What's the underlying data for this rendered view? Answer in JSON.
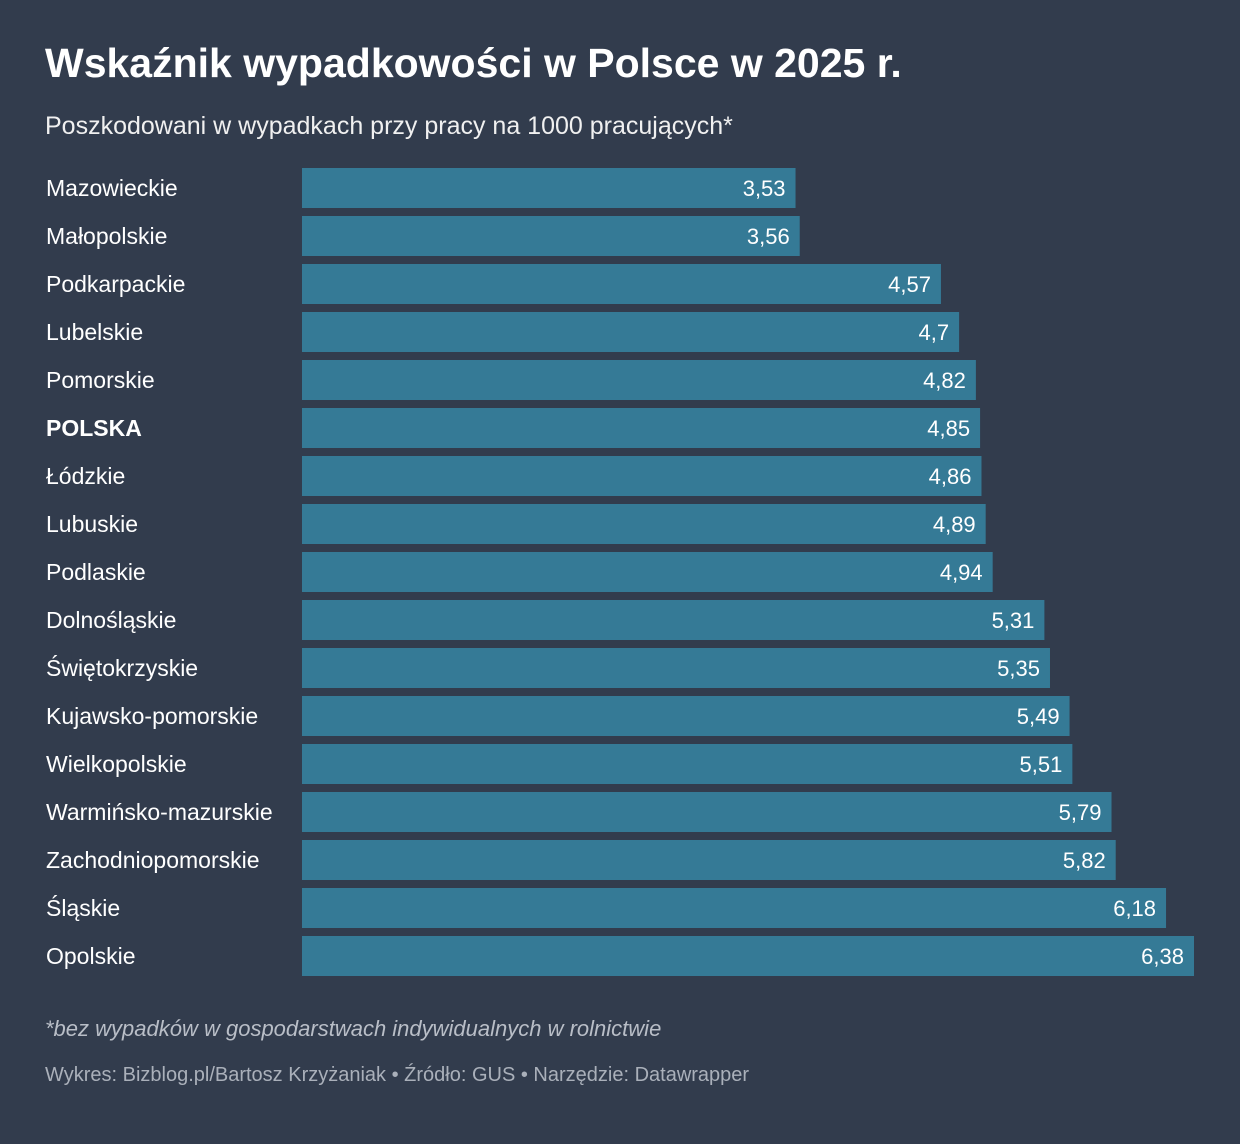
{
  "colors": {
    "background": "#323c4d",
    "bar": "#357a96",
    "text": "#ffffff",
    "muted": "#aab0ba"
  },
  "chart_data": {
    "type": "bar",
    "orientation": "horizontal",
    "title": "Wskaźnik wypadkowości w Polsce w 2025 r.",
    "subtitle": "Poszkodowani w wypadkach przy pracy na 1000 pracujących*",
    "categories": [
      "Mazowieckie",
      "Małopolskie",
      "Podkarpackie",
      "Lubelskie",
      "Pomorskie",
      "POLSKA",
      "Łódzkie",
      "Lubuskie",
      "Podlaskie",
      "Dolnośląskie",
      "Świętokrzyskie",
      "Kujawsko-pomorskie",
      "Wielkopolskie",
      "Warmińsko-mazurskie",
      "Zachodniopomorskie",
      "Śląskie",
      "Opolskie"
    ],
    "values": [
      3.53,
      3.56,
      4.57,
      4.7,
      4.82,
      4.85,
      4.86,
      4.89,
      4.94,
      5.31,
      5.35,
      5.49,
      5.51,
      5.79,
      5.82,
      6.18,
      6.38
    ],
    "value_labels": [
      "3,53",
      "3,56",
      "4,57",
      "4,7",
      "4,82",
      "4,85",
      "4,86",
      "4,89",
      "4,94",
      "5,31",
      "5,35",
      "5,49",
      "5,51",
      "5,79",
      "5,82",
      "6,18",
      "6,38"
    ],
    "highlighted": [
      "POLSKA"
    ],
    "xlim": [
      0,
      6.38
    ],
    "xlabel": "",
    "ylabel": "",
    "note": "*bez wypadków w gospodarstwach indywidualnych w rolnictwie",
    "credits": "Wykres: Bizblog.pl/Bartosz Krzyżaniak • Źródło: GUS • Narzędzie: Datawrapper"
  }
}
